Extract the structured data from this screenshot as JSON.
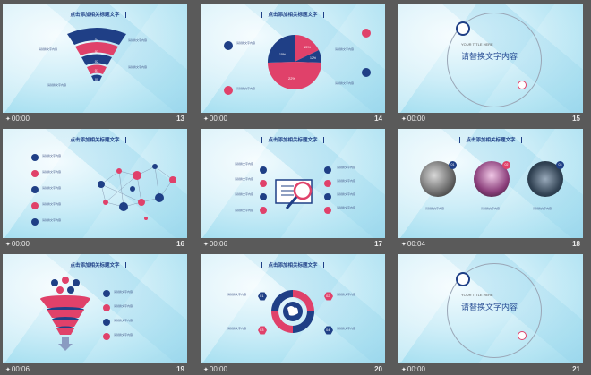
{
  "slides": [
    {
      "id": "s13",
      "title": "点击添加相关标题文字",
      "time": "00:00",
      "number": "13",
      "fan_labels": [
        "04",
        "03",
        "02",
        "01",
        "00"
      ]
    },
    {
      "id": "s14",
      "title": "点击添加相关标题文字",
      "time": "00:00",
      "number": "14",
      "pie_labels": [
        "15%",
        "12%",
        "15%",
        "22%"
      ]
    },
    {
      "id": "s15",
      "title_en": "YOUR TITLE HERE",
      "subtitle": "请替换文字内容",
      "time": "00:00",
      "number": "15"
    },
    {
      "id": "s16",
      "title": "点击添加相关标题文字",
      "time": "00:00",
      "number": "16"
    },
    {
      "id": "s17",
      "title": "点击添加相关标题文字",
      "time": "00:06",
      "number": "17"
    },
    {
      "id": "s18",
      "title": "点击添加相关标题文字",
      "time": "00:04",
      "number": "18",
      "photo_labels": [
        "01",
        "02",
        "03"
      ]
    },
    {
      "id": "s19",
      "title": "点击添加相关标题文字",
      "time": "00:06",
      "number": "19"
    },
    {
      "id": "s20",
      "title": "点击添加相关标题文字",
      "time": "00:00",
      "number": "20",
      "hex_labels": [
        "01",
        "02",
        "03",
        "04"
      ]
    },
    {
      "id": "s21",
      "title_en": "YOUR TITLE HERE",
      "subtitle": "请替换文字内容",
      "time": "00:00",
      "number": "21"
    }
  ],
  "item_text": "请替换文字内容",
  "colors": {
    "navy": "#1f3f86",
    "red": "#e0416a",
    "bg": "#5a5a5a"
  }
}
